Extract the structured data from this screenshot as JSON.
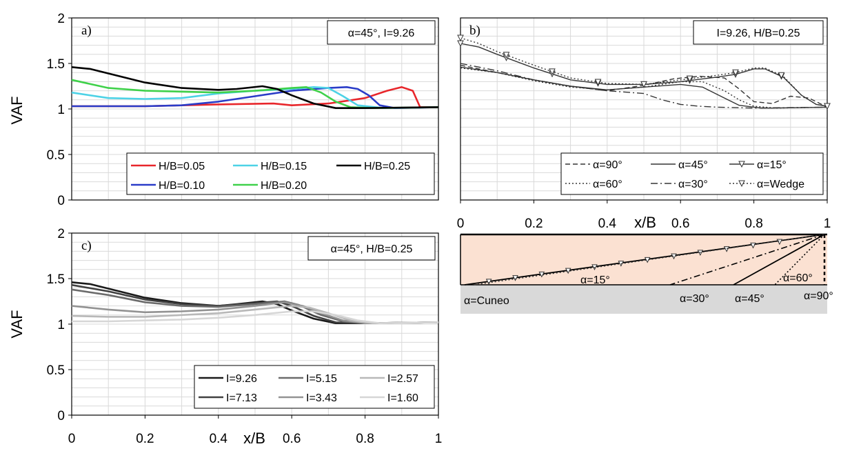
{
  "chart_data": [
    {
      "id": "a",
      "type": "line",
      "panel_label": "a)",
      "annotation": "α=45°, I=9.26",
      "xlabel": "",
      "ylabel": "VAF",
      "xlim": [
        0,
        1
      ],
      "ylim": [
        0,
        2
      ],
      "yticks": [
        "0",
        "0.5",
        "1",
        "1.5",
        "2"
      ],
      "xticks": [],
      "grid": true,
      "legend_position": "bottom-right",
      "series": [
        {
          "name": "H/B=0.05",
          "color": "#e8262b",
          "style": "solid",
          "x": [
            0,
            0.2,
            0.4,
            0.55,
            0.6,
            0.7,
            0.8,
            0.86,
            0.9,
            0.93,
            0.95,
            1.0
          ],
          "y": [
            1.03,
            1.03,
            1.05,
            1.06,
            1.04,
            1.06,
            1.12,
            1.2,
            1.24,
            1.2,
            1.02,
            1.02
          ]
        },
        {
          "name": "H/B=0.10",
          "color": "#2a3cc8",
          "style": "solid",
          "x": [
            0,
            0.2,
            0.3,
            0.4,
            0.5,
            0.6,
            0.7,
            0.75,
            0.78,
            0.81,
            0.84,
            0.88,
            1.0
          ],
          "y": [
            1.03,
            1.03,
            1.04,
            1.08,
            1.14,
            1.2,
            1.23,
            1.24,
            1.22,
            1.15,
            1.04,
            1.01,
            1.02
          ]
        },
        {
          "name": "H/B=0.15",
          "color": "#4dd2e6",
          "style": "solid",
          "x": [
            0,
            0.1,
            0.2,
            0.3,
            0.4,
            0.5,
            0.6,
            0.66,
            0.7,
            0.74,
            0.78,
            0.85,
            1.0
          ],
          "y": [
            1.18,
            1.12,
            1.11,
            1.12,
            1.17,
            1.2,
            1.22,
            1.24,
            1.23,
            1.14,
            1.04,
            1.01,
            1.02
          ]
        },
        {
          "name": "H/B=0.20",
          "color": "#3fd14a",
          "style": "solid",
          "x": [
            0,
            0.1,
            0.2,
            0.3,
            0.4,
            0.5,
            0.6,
            0.64,
            0.68,
            0.72,
            0.76,
            0.82,
            1.0
          ],
          "y": [
            1.32,
            1.23,
            1.2,
            1.19,
            1.18,
            1.2,
            1.23,
            1.24,
            1.18,
            1.08,
            1.02,
            1.01,
            1.02
          ]
        },
        {
          "name": "H/B=0.25",
          "color": "#000000",
          "style": "solid",
          "x": [
            0,
            0.05,
            0.1,
            0.2,
            0.3,
            0.4,
            0.45,
            0.52,
            0.56,
            0.6,
            0.66,
            0.72,
            0.8,
            1.0
          ],
          "y": [
            1.46,
            1.44,
            1.39,
            1.29,
            1.23,
            1.21,
            1.22,
            1.25,
            1.22,
            1.15,
            1.06,
            1.01,
            1.01,
            1.02
          ]
        }
      ]
    },
    {
      "id": "b",
      "type": "line",
      "panel_label": "b)",
      "annotation": "I=9.26, H/B=0.25",
      "xlabel": "x/B",
      "ylabel": "",
      "xlim": [
        0,
        1
      ],
      "ylim": [
        0,
        2
      ],
      "yticks": [],
      "xticks": [
        "0",
        "0.2",
        "0.4",
        "0.6",
        "0.8",
        "1"
      ],
      "grid": true,
      "legend_position": "bottom-right",
      "series": [
        {
          "name": "α=90°",
          "color": "#333333",
          "style": "dashed",
          "x": [
            0,
            0.1,
            0.2,
            0.3,
            0.4,
            0.5,
            0.58,
            0.65,
            0.72,
            0.76,
            0.8,
            0.85,
            0.9,
            0.95,
            1.0
          ],
          "y": [
            1.48,
            1.4,
            1.32,
            1.25,
            1.2,
            1.26,
            1.33,
            1.36,
            1.34,
            1.22,
            1.08,
            1.06,
            1.14,
            1.12,
            1.02
          ]
        },
        {
          "name": "α=45°",
          "color": "#333333",
          "style": "solid",
          "x": [
            0,
            0.1,
            0.2,
            0.3,
            0.4,
            0.5,
            0.6,
            0.66,
            0.72,
            0.76,
            0.82,
            0.85,
            1.0
          ],
          "y": [
            1.46,
            1.4,
            1.32,
            1.25,
            1.21,
            1.24,
            1.27,
            1.24,
            1.12,
            1.04,
            1.01,
            1.01,
            1.02
          ]
        },
        {
          "name": "α=15°",
          "color": "#333333",
          "style": "solid-marker",
          "x": [
            0,
            0.05,
            0.1,
            0.2,
            0.3,
            0.4,
            0.5,
            0.6,
            0.7,
            0.75,
            0.8,
            0.83,
            0.88,
            0.93,
            0.97,
            1.0
          ],
          "y": [
            1.72,
            1.68,
            1.6,
            1.45,
            1.32,
            1.27,
            1.27,
            1.3,
            1.35,
            1.38,
            1.44,
            1.44,
            1.35,
            1.15,
            1.05,
            1.03
          ]
        },
        {
          "name": "α=60°",
          "color": "#333333",
          "style": "dotted",
          "x": [
            0,
            0.1,
            0.2,
            0.3,
            0.4,
            0.5,
            0.6,
            0.66,
            0.72,
            0.76,
            0.8,
            0.86,
            1.0
          ],
          "y": [
            1.45,
            1.4,
            1.31,
            1.24,
            1.21,
            1.24,
            1.3,
            1.3,
            1.2,
            1.1,
            1.03,
            1.01,
            1.02
          ]
        },
        {
          "name": "α=30°",
          "color": "#333333",
          "style": "dashdot",
          "x": [
            0,
            0.1,
            0.2,
            0.3,
            0.4,
            0.5,
            0.55,
            0.6,
            0.65,
            0.7,
            0.8,
            1.0
          ],
          "y": [
            1.5,
            1.42,
            1.32,
            1.25,
            1.2,
            1.17,
            1.1,
            1.05,
            1.03,
            1.02,
            1.01,
            1.02
          ]
        },
        {
          "name": "α=Wedge",
          "color": "#333333",
          "style": "dotted-marker",
          "x": [
            0,
            0.05,
            0.1,
            0.2,
            0.3,
            0.4,
            0.5,
            0.6,
            0.7,
            0.75,
            0.8,
            0.83,
            0.88,
            0.93,
            0.97,
            1.0
          ],
          "y": [
            1.78,
            1.72,
            1.63,
            1.48,
            1.34,
            1.28,
            1.27,
            1.32,
            1.37,
            1.4,
            1.45,
            1.45,
            1.36,
            1.15,
            1.05,
            1.03
          ]
        }
      ]
    },
    {
      "id": "c",
      "type": "line",
      "panel_label": "c)",
      "annotation": "α=45°, H/B=0.25",
      "xlabel": "x/B",
      "ylabel": "VAF",
      "xlim": [
        0,
        1
      ],
      "ylim": [
        0,
        2
      ],
      "yticks": [
        "0",
        "0.5",
        "1",
        "1.5",
        "2"
      ],
      "xticks": [
        "0",
        "0.2",
        "0.4",
        "0.6",
        "0.8",
        "1"
      ],
      "grid": true,
      "legend_position": "bottom-right",
      "series": [
        {
          "name": "I=9.26",
          "color": "#1a1a1a",
          "style": "solid",
          "x": [
            0,
            0.05,
            0.1,
            0.2,
            0.3,
            0.4,
            0.45,
            0.52,
            0.56,
            0.6,
            0.66,
            0.72,
            0.8,
            1.0
          ],
          "y": [
            1.46,
            1.44,
            1.39,
            1.29,
            1.23,
            1.2,
            1.22,
            1.25,
            1.22,
            1.15,
            1.06,
            1.01,
            1.01,
            1.02
          ]
        },
        {
          "name": "I=7.13",
          "color": "#404040",
          "style": "solid",
          "x": [
            0,
            0.1,
            0.2,
            0.3,
            0.4,
            0.5,
            0.56,
            0.6,
            0.66,
            0.72,
            0.8,
            1.0
          ],
          "y": [
            1.43,
            1.36,
            1.27,
            1.22,
            1.2,
            1.23,
            1.25,
            1.2,
            1.09,
            1.02,
            1.01,
            1.02
          ]
        },
        {
          "name": "I=5.15",
          "color": "#6b6b6b",
          "style": "solid",
          "x": [
            0,
            0.1,
            0.2,
            0.3,
            0.4,
            0.5,
            0.58,
            0.62,
            0.68,
            0.74,
            0.8,
            1.0
          ],
          "y": [
            1.38,
            1.32,
            1.24,
            1.2,
            1.19,
            1.22,
            1.25,
            1.21,
            1.1,
            1.03,
            1.01,
            1.02
          ]
        },
        {
          "name": "I=3.43",
          "color": "#929292",
          "style": "solid",
          "x": [
            0,
            0.1,
            0.2,
            0.3,
            0.4,
            0.5,
            0.58,
            0.63,
            0.68,
            0.74,
            0.8,
            1.0
          ],
          "y": [
            1.2,
            1.16,
            1.13,
            1.14,
            1.16,
            1.2,
            1.24,
            1.2,
            1.12,
            1.04,
            1.01,
            1.02
          ]
        },
        {
          "name": "I=2.57",
          "color": "#b8b8b8",
          "style": "solid",
          "x": [
            0,
            0.1,
            0.2,
            0.3,
            0.4,
            0.5,
            0.6,
            0.65,
            0.7,
            0.76,
            0.82,
            1.0
          ],
          "y": [
            1.09,
            1.08,
            1.08,
            1.1,
            1.12,
            1.16,
            1.2,
            1.18,
            1.12,
            1.04,
            1.01,
            1.02
          ]
        },
        {
          "name": "I=1.60",
          "color": "#d6d6d6",
          "style": "solid",
          "x": [
            0,
            0.1,
            0.2,
            0.3,
            0.4,
            0.5,
            0.6,
            0.66,
            0.72,
            0.78,
            0.84,
            1.0
          ],
          "y": [
            1.03,
            1.03,
            1.04,
            1.05,
            1.07,
            1.1,
            1.14,
            1.14,
            1.1,
            1.04,
            1.01,
            1.02
          ]
        }
      ]
    }
  ],
  "diagram": {
    "label_cuneo": "α=Cuneo",
    "label_15": "α=15°",
    "label_30": "α=30°",
    "label_45": "α=45°",
    "label_60": "α=60°",
    "label_90": "α=90°",
    "colors": {
      "fill": "#fbe1d2",
      "ground": "#d9d9d9"
    }
  }
}
